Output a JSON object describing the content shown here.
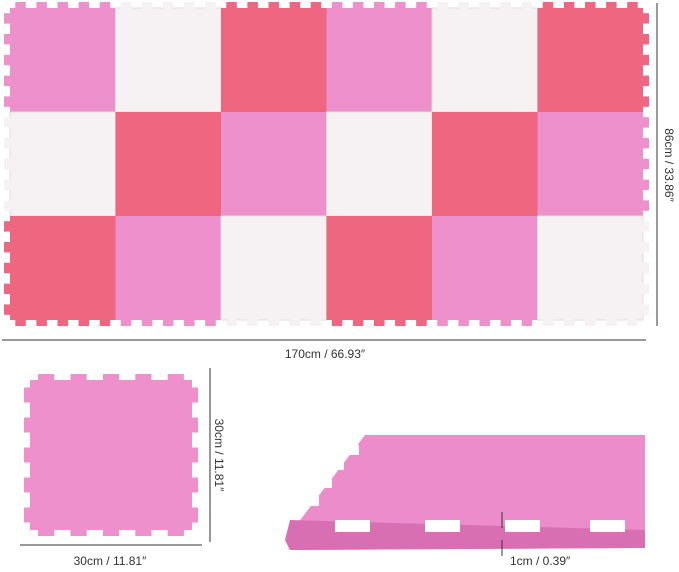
{
  "dimensions": {
    "total_height": "86cm / 33.86″",
    "total_width": "170cm / 66.93″",
    "tile_height": "30cm / 11.81″",
    "tile_width": "30cm / 11.81″",
    "thickness": "1cm / 0.39″"
  }
}
